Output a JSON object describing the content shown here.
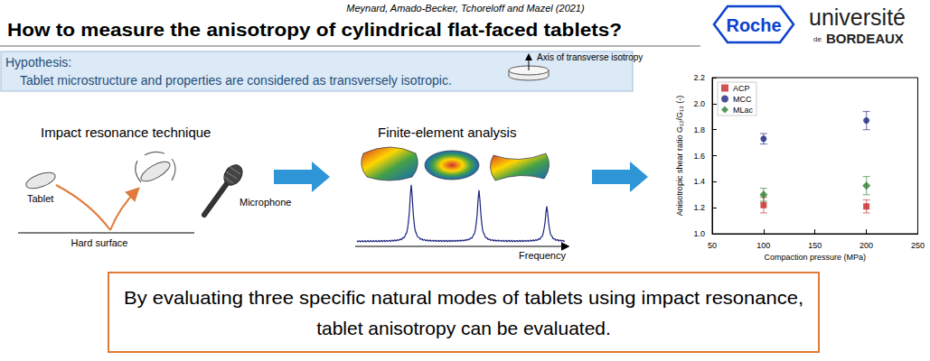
{
  "header": {
    "authors": "Meynard, Amado-Becker, Tchoreloff and Mazel (2021)",
    "title": "How to measure the anisotropy of cylindrical flat-faced tablets?",
    "logos": {
      "roche": "Roche",
      "bordeaux": [
        "université",
        "de",
        "BORDEAUX"
      ]
    }
  },
  "hypothesis": {
    "heading": "Hypothesis:",
    "text": "Tablet microstructure and properties are considered as transversely isotropic.",
    "axis_label": "Axis of transverse isotropy"
  },
  "steps": [
    {
      "title": "Impact resonance technique",
      "labels": {
        "tablet": "Tablet",
        "microphone": "Microphone",
        "surface": "Hard surface"
      }
    },
    {
      "title": "Finite-element analysis",
      "x_label": "Frequency"
    }
  ],
  "chart_data": {
    "type": "scatter",
    "x_label": "Compaction pressure (MPa)",
    "y_label": "Anisotropic shear ratio G₁₂/G₁₃ (-)",
    "xlim": [
      50,
      250
    ],
    "xticks": [
      50,
      100,
      150,
      200,
      250
    ],
    "ylim": [
      1.0,
      2.2
    ],
    "yticks": [
      {
        "value": 1.0,
        "label": "1.0"
      },
      1.2,
      1.4,
      1.6,
      1.8,
      {
        "value": 2.0,
        "label": "2.0"
      },
      2.2
    ],
    "grid": false,
    "legend": "upper left",
    "series": [
      {
        "name": "ACP",
        "color": "#c62828",
        "marker": "square",
        "x": [
          100,
          200
        ],
        "values": [
          1.22,
          1.21
        ],
        "errors": [
          0.06,
          0.05
        ]
      },
      {
        "name": "MCC",
        "color": "#1a237e",
        "marker": "circle",
        "x": [
          100,
          200
        ],
        "values": [
          1.73,
          1.87
        ],
        "errors": [
          0.04,
          0.07
        ]
      },
      {
        "name": "MLac",
        "color": "#2e7d32",
        "marker": "diamond",
        "x": [
          100,
          200
        ],
        "values": [
          1.3,
          1.37
        ],
        "errors": [
          0.05,
          0.07
        ]
      }
    ]
  },
  "conclusion": [
    "By evaluating three specific natural modes of tablets using impact resonance,",
    "tablet anisotropy can be evaluated."
  ]
}
